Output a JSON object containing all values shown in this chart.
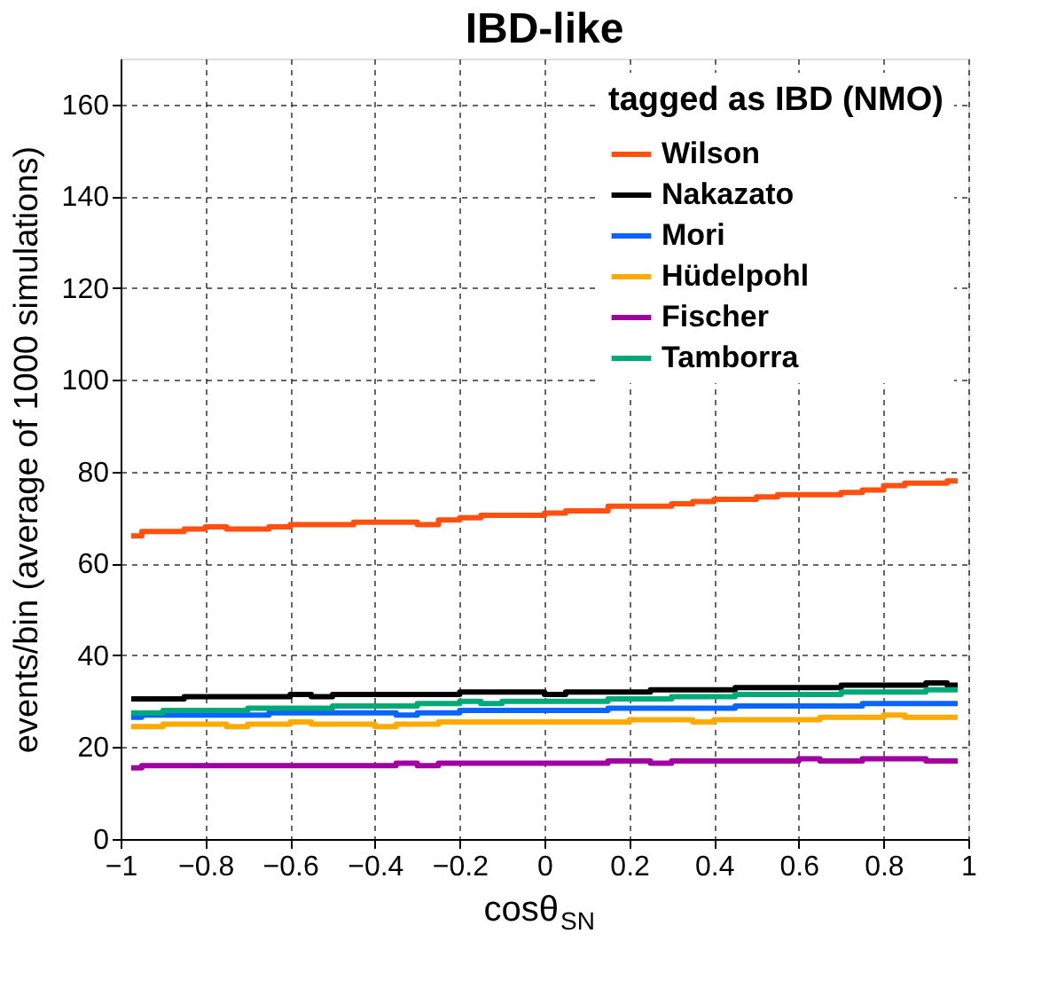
{
  "chart_data": {
    "type": "step",
    "title": "IBD-like",
    "xlabel": "cosθ$_{SN}$",
    "ylabel": "events/bin (average of 1000 simulations)",
    "legend_title": "tagged as IBD (NMO)",
    "legend": "top right",
    "grid": true,
    "line_style": "solid",
    "marker": "none",
    "xlim": [
      -1,
      1
    ],
    "ylim": [
      0,
      170
    ],
    "xticks": [
      -1,
      -0.8,
      -0.6,
      -0.4,
      -0.2,
      0,
      0.2,
      0.4,
      0.6,
      0.8,
      1
    ],
    "yticks": [
      0,
      20,
      40,
      60,
      80,
      100,
      120,
      140,
      160
    ],
    "x": [
      -0.975,
      -0.925,
      -0.875,
      -0.825,
      -0.775,
      -0.725,
      -0.675,
      -0.625,
      -0.575,
      -0.525,
      -0.475,
      -0.425,
      -0.375,
      -0.325,
      -0.275,
      -0.225,
      -0.175,
      -0.125,
      -0.075,
      -0.025,
      0.025,
      0.075,
      0.125,
      0.175,
      0.225,
      0.275,
      0.325,
      0.375,
      0.425,
      0.475,
      0.525,
      0.575,
      0.625,
      0.675,
      0.725,
      0.775,
      0.825,
      0.875,
      0.925,
      0.975
    ],
    "series": [
      {
        "name": "Wilson",
        "color": "#ff5010",
        "values": [
          66,
          67,
          67,
          67.5,
          68,
          67.5,
          67.5,
          68,
          68.5,
          68.5,
          68.5,
          69,
          69,
          69,
          68.5,
          69.5,
          70,
          70.5,
          70.5,
          70.5,
          71,
          71.5,
          71.5,
          72.5,
          72.5,
          72.5,
          73,
          73.5,
          74,
          74,
          74.5,
          75,
          75,
          75,
          75.5,
          76,
          77,
          77.5,
          77.5,
          78
        ]
      },
      {
        "name": "Nakazato",
        "color": "#000000",
        "values": [
          30.5,
          30.5,
          30.5,
          31,
          31,
          31,
          31,
          31,
          31.5,
          31,
          31.5,
          31.5,
          31.5,
          31.5,
          31.5,
          31.5,
          32,
          32,
          32,
          32,
          31.5,
          32,
          32,
          32,
          32,
          32.5,
          32.5,
          32.5,
          32.5,
          33,
          33,
          33,
          33,
          33,
          33.5,
          33.5,
          33.5,
          33.5,
          34,
          33.5
        ]
      },
      {
        "name": "Mori",
        "color": "#0a64ff",
        "values": [
          26.5,
          27,
          27,
          27,
          27,
          27,
          27,
          27.5,
          27.5,
          27.5,
          27.5,
          27.5,
          27.5,
          27,
          27.5,
          27.5,
          28,
          28,
          28,
          28,
          28,
          28,
          28,
          28.5,
          28.5,
          28.5,
          28.5,
          28.5,
          28.5,
          29,
          29,
          29,
          29,
          29,
          29,
          29.5,
          29.5,
          29.5,
          29.5,
          29.5
        ]
      },
      {
        "name": "Hüdelpohl",
        "color": "#ffaa00",
        "values": [
          24.5,
          24.5,
          25,
          25,
          25,
          24.5,
          25,
          25,
          25.5,
          25,
          25,
          25,
          24.5,
          25,
          25,
          25.5,
          25.5,
          25.5,
          25.5,
          25.5,
          25.5,
          25.5,
          25.5,
          25.5,
          26,
          26,
          26,
          25.5,
          26,
          26,
          26,
          26,
          26,
          26.5,
          26.5,
          26.5,
          27,
          26.5,
          26.5,
          26.5
        ]
      },
      {
        "name": "Fischer",
        "color": "#a000a0",
        "values": [
          15.5,
          16,
          16,
          16,
          16,
          16,
          16,
          16,
          16,
          16,
          16,
          16,
          16,
          16.5,
          16,
          16.5,
          16.5,
          16.5,
          16.5,
          16.5,
          16.5,
          16.5,
          16.5,
          17,
          17,
          16.5,
          17,
          17,
          17,
          17,
          17,
          17,
          17.5,
          17,
          17,
          17.5,
          17.5,
          17.5,
          17,
          17
        ]
      },
      {
        "name": "Tamborra",
        "color": "#00aa78",
        "values": [
          27.5,
          27.5,
          28,
          28,
          28,
          28,
          28.5,
          28.5,
          28.5,
          28.5,
          29,
          29,
          29,
          29,
          29.5,
          29.5,
          30,
          29.5,
          30,
          30,
          30,
          30,
          30,
          30.5,
          30.5,
          30.5,
          31,
          31,
          31,
          31.5,
          31.5,
          31.5,
          31.5,
          31.5,
          32,
          32,
          32,
          32,
          32.5,
          32.5
        ]
      }
    ]
  }
}
